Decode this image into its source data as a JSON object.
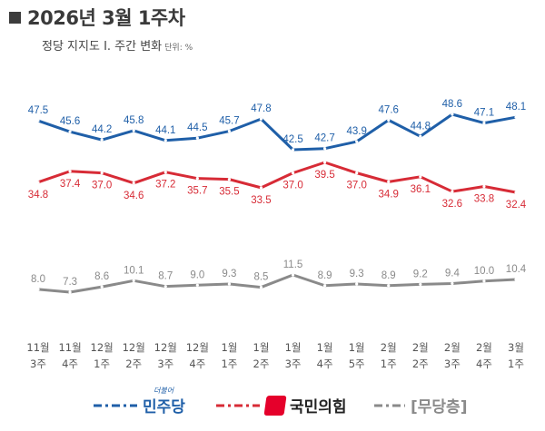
{
  "header": {
    "title": "2026년 3월 1주차",
    "subtitle": "정당 지지도 Ⅰ. 주간 변화",
    "unit": "단위: %"
  },
  "legend": {
    "democratic": {
      "label": "민주당",
      "small_label": "더불어",
      "color": "#1f5fa8"
    },
    "ppp": {
      "label": "국민의힘",
      "color": "#d72b36"
    },
    "none": {
      "label": "[무당층]",
      "color": "#8a8a8a"
    }
  },
  "chart_data": {
    "type": "line",
    "categories": [
      [
        "11월",
        "3주"
      ],
      [
        "11월",
        "4주"
      ],
      [
        "12월",
        "1주"
      ],
      [
        "12월",
        "2주"
      ],
      [
        "12월",
        "3주"
      ],
      [
        "12월",
        "4주"
      ],
      [
        "1월",
        "1주"
      ],
      [
        "1월",
        "2주"
      ],
      [
        "1월",
        "3주"
      ],
      [
        "1월",
        "4주"
      ],
      [
        "1월",
        "5주"
      ],
      [
        "2월",
        "1주"
      ],
      [
        "2월",
        "2주"
      ],
      [
        "2월",
        "3주"
      ],
      [
        "2월",
        "4주"
      ],
      [
        "3월",
        "1주"
      ]
    ],
    "series": [
      {
        "name": "민주당",
        "color": "#1f5fa8",
        "values": [
          47.5,
          45.6,
          44.2,
          45.8,
          44.1,
          44.5,
          45.7,
          47.8,
          42.5,
          42.7,
          43.9,
          47.6,
          44.8,
          48.6,
          47.1,
          48.1
        ]
      },
      {
        "name": "국민의힘",
        "color": "#d72b36",
        "values": [
          34.8,
          37.4,
          37.0,
          34.6,
          37.2,
          35.7,
          35.5,
          33.5,
          37.0,
          39.5,
          37.0,
          34.9,
          36.1,
          32.6,
          33.8,
          32.4
        ]
      },
      {
        "name": "무당층",
        "color": "#8a8a8a",
        "values": [
          8.0,
          7.3,
          8.6,
          10.1,
          8.7,
          9.0,
          9.3,
          8.5,
          11.5,
          8.9,
          9.3,
          8.9,
          9.2,
          9.4,
          10.0,
          10.4
        ]
      }
    ],
    "label_position": [
      "above",
      "below",
      "above"
    ],
    "grid": false,
    "legend_position": "bottom"
  }
}
